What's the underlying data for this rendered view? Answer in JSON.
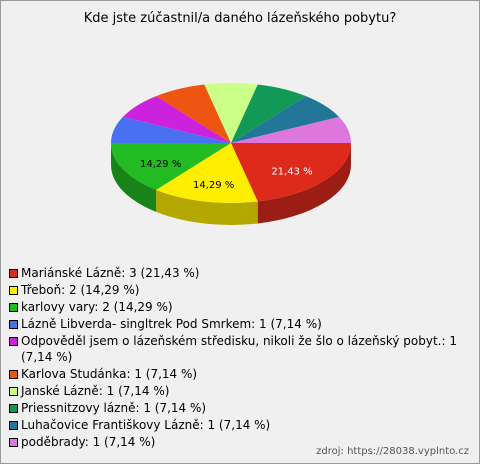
{
  "chart_data": {
    "type": "pie",
    "title": "Kde jste zúčastnil/a daného lázeňského pobytu?",
    "categories": [
      "Mariánské Lázně",
      "Třeboň",
      "karlovy vary",
      "Lázně Libverda- singltrek Pod Smrkem",
      "Odpověděl jsem o lázeňském středisku, nikoli že šlo o lázeňský pobyt.",
      "Karlova Studánka",
      "Janské Lázně",
      "Priessnitzovy lázně",
      "Luhačovice Františkovy Lázně",
      "poděbrady"
    ],
    "values": [
      21.43,
      14.29,
      14.29,
      7.14,
      7.14,
      7.14,
      7.14,
      7.14,
      7.14,
      7.14
    ],
    "value_labels": [
      "21,43 %",
      "14,29 %",
      "14,29 %",
      null,
      null,
      null,
      null,
      null,
      null,
      null
    ],
    "legend_labels": [
      "Mariánské Lázně: 3 (21,43 %)",
      "Třeboň: 2 (14,29 %)",
      "karlovy vary: 2 (14,29 %)",
      "Lázně Libverda- singltrek Pod Smrkem: 1 (7,14 %)",
      "Odpověděl jsem o lázeňském středisku, nikoli že šlo o lázeňský pobyt.: 1 (7,14 %)",
      "Karlova Studánka: 1 (7,14 %)",
      "Janské Lázně: 1 (7,14 %)",
      "Priessnitzovy lázně: 1 (7,14 %)",
      "Luhačovice Františkovy Lázně: 1 (7,14 %)",
      "poděbrady: 1 (7,14 %)"
    ],
    "colors": [
      "#dd2a1b",
      "#ffee00",
      "#22bb22",
      "#4a6ff0",
      "#cc22dd",
      "#ee5511",
      "#ccff88",
      "#119955",
      "#227799",
      "#dd77dd"
    ],
    "source": "zdroj: https://28038.vyplnto.cz"
  }
}
